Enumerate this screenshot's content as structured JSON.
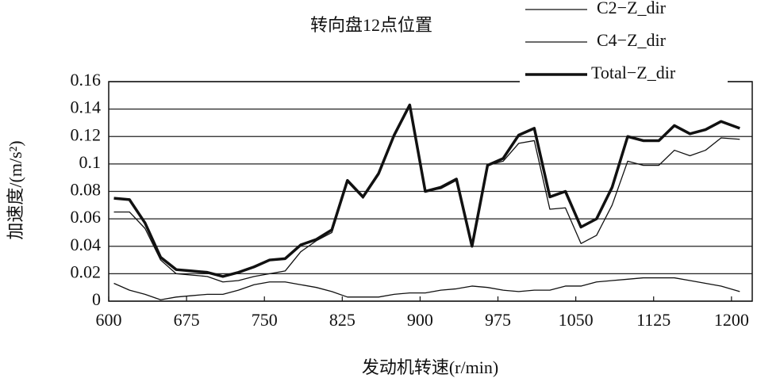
{
  "chart_data": {
    "type": "line",
    "title": "转向盘12点位置",
    "x_label": "发动机转速(r/min)",
    "y_label": "加速度/(m/s²)",
    "x": [
      605,
      620,
      635,
      650,
      665,
      680,
      695,
      710,
      725,
      740,
      755,
      770,
      785,
      800,
      815,
      830,
      845,
      860,
      875,
      890,
      905,
      920,
      935,
      950,
      965,
      980,
      995,
      1010,
      1025,
      1040,
      1055,
      1070,
      1085,
      1100,
      1115,
      1130,
      1145,
      1160,
      1175,
      1190,
      1208
    ],
    "series": [
      {
        "name": "C2−Z_dir",
        "color": "#111111",
        "line_width": 1.3,
        "values": [
          0.013,
          0.008,
          0.005,
          0.001,
          0.003,
          0.004,
          0.005,
          0.005,
          0.008,
          0.012,
          0.014,
          0.014,
          0.012,
          0.01,
          0.007,
          0.003,
          0.003,
          0.003,
          0.005,
          0.006,
          0.006,
          0.008,
          0.009,
          0.011,
          0.01,
          0.008,
          0.007,
          0.008,
          0.008,
          0.011,
          0.011,
          0.014,
          0.015,
          0.016,
          0.017,
          0.017,
          0.017,
          0.015,
          0.013,
          0.011,
          0.007
        ]
      },
      {
        "name": "C4−Z_dir",
        "color": "#111111",
        "line_width": 1.3,
        "values": [
          0.065,
          0.065,
          0.053,
          0.03,
          0.02,
          0.019,
          0.018,
          0.014,
          0.015,
          0.018,
          0.02,
          0.022,
          0.036,
          0.044,
          0.05,
          0.087,
          0.075,
          0.092,
          0.12,
          0.142,
          0.08,
          0.082,
          0.088,
          0.04,
          0.099,
          0.102,
          0.115,
          0.117,
          0.067,
          0.068,
          0.042,
          0.048,
          0.07,
          0.102,
          0.099,
          0.099,
          0.11,
          0.106,
          0.11,
          0.119,
          0.118
        ]
      },
      {
        "name": "Total−Z_dir",
        "color": "#111111",
        "line_width": 3.5,
        "values": [
          0.075,
          0.074,
          0.057,
          0.032,
          0.023,
          0.022,
          0.021,
          0.018,
          0.021,
          0.025,
          0.03,
          0.031,
          0.041,
          0.045,
          0.052,
          0.088,
          0.076,
          0.093,
          0.121,
          0.143,
          0.08,
          0.083,
          0.089,
          0.04,
          0.099,
          0.104,
          0.121,
          0.126,
          0.076,
          0.08,
          0.054,
          0.06,
          0.083,
          0.12,
          0.117,
          0.117,
          0.128,
          0.122,
          0.125,
          0.131,
          0.126
        ]
      }
    ],
    "xlim": [
      600,
      1220
    ],
    "xticks": [
      600,
      675,
      750,
      825,
      900,
      975,
      1050,
      1125,
      1200
    ],
    "ylim": [
      0,
      0.16
    ],
    "yticks": [
      0,
      0.02,
      0.04,
      0.06,
      0.08,
      0.1,
      0.12,
      0.14,
      0.16
    ],
    "grid": true
  }
}
